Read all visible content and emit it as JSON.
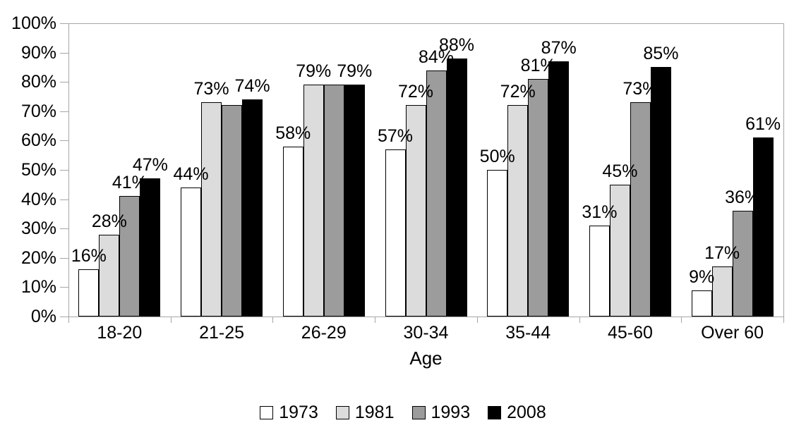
{
  "chart_data": {
    "type": "bar",
    "title": "",
    "xlabel": "Age",
    "ylabel": "",
    "categories": [
      "18-20",
      "21-25",
      "26-29",
      "30-34",
      "35-44",
      "45-60",
      "Over 60"
    ],
    "series": [
      {
        "name": "1973",
        "color": "#ffffff",
        "values": [
          16,
          44,
          58,
          57,
          50,
          31,
          9
        ],
        "value_labels": [
          "16%",
          "44%",
          "58%",
          "57%",
          "50%",
          "31%",
          "9%"
        ]
      },
      {
        "name": "1981",
        "color": "#dcdcdc",
        "values": [
          28,
          73,
          79,
          72,
          72,
          45,
          17
        ],
        "value_labels": [
          "28%",
          "73%",
          "79%",
          "72%",
          "72%",
          "45%",
          "17%"
        ]
      },
      {
        "name": "1993",
        "color": "#9c9c9c",
        "values": [
          41,
          72,
          79,
          84,
          81,
          73,
          36
        ],
        "value_labels": [
          "41%",
          "",
          "",
          "84%",
          "81%",
          "73%",
          "36%"
        ]
      },
      {
        "name": "2008",
        "color": "#000000",
        "values": [
          47,
          74,
          79,
          88,
          87,
          85,
          61
        ],
        "value_labels": [
          "47%",
          "74%",
          "79%",
          "88%",
          "87%",
          "85%",
          "61%"
        ]
      }
    ],
    "y_ticks": [
      "0%",
      "10%",
      "20%",
      "30%",
      "40%",
      "50%",
      "60%",
      "70%",
      "80%",
      "90%",
      "100%"
    ],
    "ylim": [
      0,
      100
    ],
    "ytick_step": 10,
    "grid": "top-border-only",
    "legend_position": "bottom-center",
    "colors": {
      "axis": "#a6a6a6",
      "text": "#000000",
      "bar_border": "#000000"
    }
  }
}
